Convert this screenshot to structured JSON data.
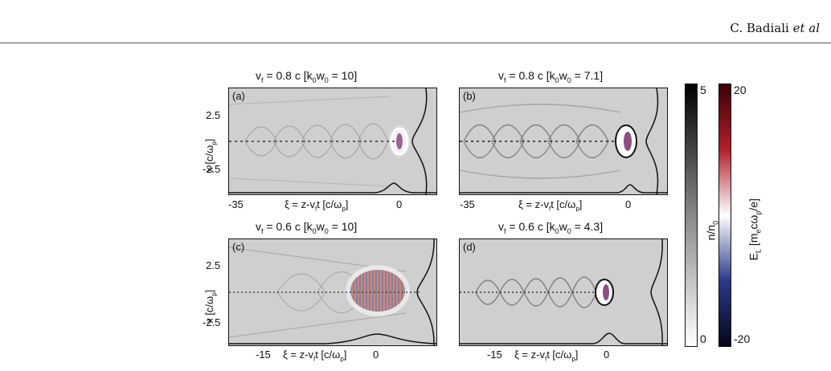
{
  "header": {
    "author": "C. Badiali",
    "etal": "et al"
  },
  "panels": [
    {
      "id": "a",
      "label": "(a)",
      "vf": "0.8 c",
      "kw": "10",
      "x_left": "-35",
      "x_zero": "0",
      "y_top": "2.5",
      "y_bottom": "-2.5"
    },
    {
      "id": "b",
      "label": "(b)",
      "vf": "0.8 c",
      "kw": "7.1",
      "x_left": "-35",
      "x_zero": "0"
    },
    {
      "id": "c",
      "label": "(c)",
      "vf": "0.6 c",
      "kw": "10",
      "x_left": "-15",
      "x_zero": "0",
      "y_top": "2.5",
      "y_bottom": "-2.5"
    },
    {
      "id": "d",
      "label": "(d)",
      "vf": "0.6 c",
      "kw": "4.3",
      "x_left": "-15",
      "x_zero": "0"
    }
  ],
  "axis": {
    "x_main": "ξ = z-v",
    "x_sub_f": "f",
    "x_t": "t [c/ω",
    "x_sub_p": "p",
    "x_close": "]",
    "y_main": "x [c/ω",
    "y_sub_p": "p",
    "y_close": "]"
  },
  "colorbars": {
    "density": {
      "max": "5",
      "min": "0",
      "label_main": "n/n",
      "label_sub": "0"
    },
    "field": {
      "max": "20",
      "min": "-20",
      "label_main": "E",
      "label_sub_L": "L",
      "label_rest": " [m",
      "label_sub_e": "e",
      "label_c": "cω",
      "label_sub_p": "p",
      "label_end": "/e]"
    }
  }
}
